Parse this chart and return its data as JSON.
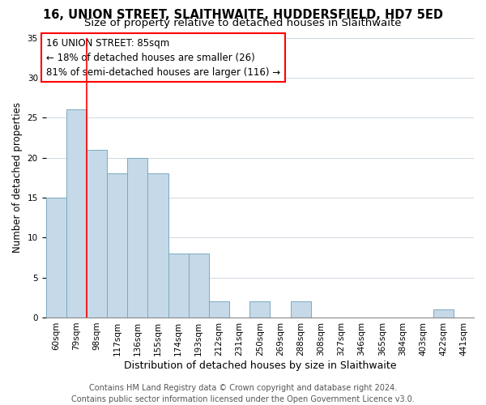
{
  "title": "16, UNION STREET, SLAITHWAITE, HUDDERSFIELD, HD7 5ED",
  "subtitle": "Size of property relative to detached houses in Slaithwaite",
  "xlabel": "Distribution of detached houses by size in Slaithwaite",
  "ylabel": "Number of detached properties",
  "bin_labels": [
    "60sqm",
    "79sqm",
    "98sqm",
    "117sqm",
    "136sqm",
    "155sqm",
    "174sqm",
    "193sqm",
    "212sqm",
    "231sqm",
    "250sqm",
    "269sqm",
    "288sqm",
    "308sqm",
    "327sqm",
    "346sqm",
    "365sqm",
    "384sqm",
    "403sqm",
    "422sqm",
    "441sqm"
  ],
  "bar_heights": [
    15,
    26,
    21,
    18,
    20,
    18,
    8,
    8,
    2,
    0,
    2,
    0,
    2,
    0,
    0,
    0,
    0,
    0,
    0,
    1,
    0
  ],
  "bar_color": "#c6d9e8",
  "bar_edge_color": "#7aaabf",
  "red_line_x": 1.5,
  "annotation_line1": "16 UNION STREET: 85sqm",
  "annotation_line2": "← 18% of detached houses are smaller (26)",
  "annotation_line3": "81% of semi-detached houses are larger (116) →",
  "ylim": [
    0,
    35
  ],
  "yticks": [
    0,
    5,
    10,
    15,
    20,
    25,
    30,
    35
  ],
  "footer_line1": "Contains HM Land Registry data © Crown copyright and database right 2024.",
  "footer_line2": "Contains public sector information licensed under the Open Government Licence v3.0.",
  "title_fontsize": 10.5,
  "subtitle_fontsize": 9.5,
  "xlabel_fontsize": 9,
  "ylabel_fontsize": 8.5,
  "tick_fontsize": 7.5,
  "annotation_fontsize": 8.5,
  "footer_fontsize": 7
}
